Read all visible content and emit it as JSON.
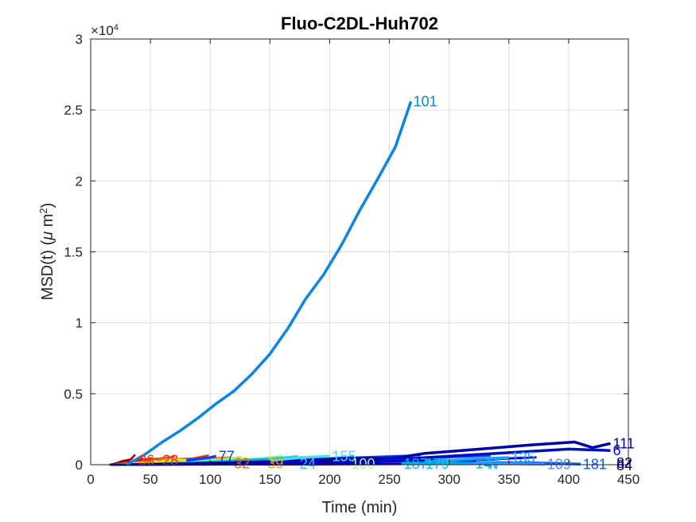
{
  "chart_data": {
    "type": "line",
    "title": "Fluo-C2DL-Huh702",
    "xlabel": "Time (min)",
    "ylabel_main": "MSD(t) (",
    "ylabel_mu": "μ",
    "ylabel_unit": " m",
    "ylabel_sup": "2",
    "ylabel_close": ")",
    "y_multiplier_base": "×10",
    "y_multiplier_exp": "4",
    "xlim": [
      0,
      450
    ],
    "ylim": [
      0,
      30000
    ],
    "y_scale": 10000,
    "xticks": [
      0,
      50,
      100,
      150,
      200,
      250,
      300,
      350,
      400,
      450
    ],
    "yticks": [
      0,
      5000,
      10000,
      15000,
      20000,
      25000,
      30000
    ],
    "ytick_labels": [
      "0",
      "0.5",
      "1",
      "1.5",
      "2",
      "2.5",
      "3"
    ],
    "grid": true,
    "series": [
      {
        "name": "101",
        "color": "#0a84e8",
        "x": [
          30,
          45,
          60,
          75,
          90,
          105,
          120,
          135,
          150,
          165,
          180,
          195,
          210,
          225,
          240,
          255,
          268
        ],
        "y": [
          0,
          700,
          1600,
          2400,
          3300,
          4300,
          5200,
          6400,
          7800,
          9600,
          11700,
          13400,
          15500,
          17900,
          20100,
          22400,
          25600
        ],
        "label_pos": "end"
      },
      {
        "name": "111",
        "color": "#0000a8",
        "x": [
          250,
          280,
          310,
          340,
          370,
          405,
          420,
          435
        ],
        "y": [
          400,
          800,
          1000,
          1200,
          1400,
          1600,
          1200,
          1500
        ],
        "label_pos": "end"
      },
      {
        "name": "6",
        "color": "#0010c0",
        "x": [
          240,
          280,
          320,
          360,
          400,
          435
        ],
        "y": [
          300,
          500,
          700,
          900,
          1100,
          1000
        ],
        "label_pos": "end"
      },
      {
        "name": "155",
        "color": "#40e0ff",
        "x": [
          150,
          175,
          200
        ],
        "y": [
          300,
          500,
          600
        ],
        "label_pos": "end"
      },
      {
        "name": "135",
        "color": "#1a9fff",
        "x": [
          280,
          320,
          350
        ],
        "y": [
          200,
          400,
          500
        ],
        "label_pos": "end"
      },
      {
        "name": "77",
        "color": "#0044ff",
        "x": [
          80,
          100,
          105
        ],
        "y": [
          300,
          500,
          600
        ],
        "label_pos": "end"
      },
      {
        "name": "181",
        "color": "#0a5cf0",
        "x": [
          300,
          360,
          410
        ],
        "y": [
          100,
          150,
          40
        ],
        "label_pos": "end"
      },
      {
        "name": "109",
        "color": "#4a90ff",
        "x": [
          280,
          330,
          380
        ],
        "y": [
          60,
          90,
          40
        ],
        "label_pos": "end"
      },
      {
        "name": "147",
        "color": "#00a8e8",
        "x": [
          260,
          300,
          320
        ],
        "y": [
          100,
          120,
          90
        ],
        "label_pos": "end"
      }
    ],
    "cluster_labels": [
      {
        "text": "100",
        "x": 218,
        "y": 60,
        "color": "#b8f0a0"
      },
      {
        "text": "187",
        "x": 262,
        "y": 60,
        "color": "#10b8f0"
      },
      {
        "text": "179",
        "x": 280,
        "y": 60,
        "color": "#10c8f0"
      },
      {
        "text": "47",
        "x": 330,
        "y": 40,
        "color": "#20a0ff"
      },
      {
        "text": "24",
        "x": 175,
        "y": 60,
        "color": "#30c8ff"
      },
      {
        "text": "39",
        "x": 148,
        "y": 80,
        "color": "#ffa000"
      },
      {
        "text": "32",
        "x": 120,
        "y": 80,
        "color": "#ff6000"
      },
      {
        "text": "36",
        "x": 40,
        "y": 300,
        "color": "#ff4000"
      },
      {
        "text": "28",
        "x": 60,
        "y": 300,
        "color": "#ff3000"
      },
      {
        "text": "82",
        "x": 440,
        "y": 100,
        "color": "#000080"
      },
      {
        "text": "84",
        "x": 440,
        "y": -50,
        "color": "#000070"
      }
    ]
  }
}
